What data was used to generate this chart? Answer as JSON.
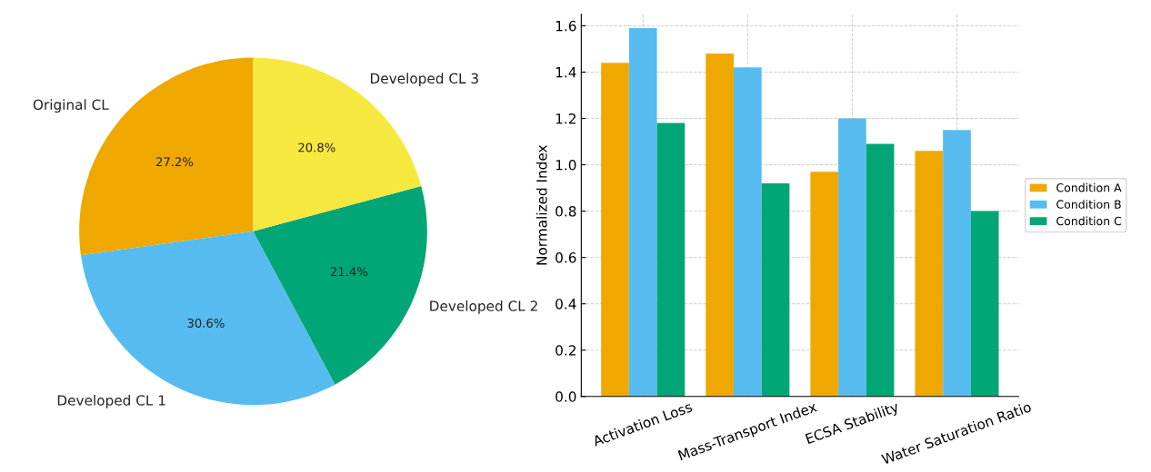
{
  "chart_data": [
    {
      "type": "pie",
      "categories": [
        "Original CL",
        "Developed CL 1",
        "Developed CL 2",
        "Developed CL 3"
      ],
      "values": [
        27.2,
        30.6,
        21.4,
        20.8
      ],
      "colors": [
        "#efa800",
        "#56bcf0",
        "#00a676",
        "#f7e840"
      ],
      "value_labels": [
        "27.2%",
        "30.6%",
        "21.4%",
        "20.8%"
      ]
    },
    {
      "type": "bar",
      "ylabel": "Normalized Index",
      "categories": [
        "Activation Loss",
        "Mass-Transport Index",
        "ECSA Stability",
        "Water Saturation Ratio"
      ],
      "series": [
        {
          "name": "Condition A",
          "color": "#efa800",
          "values": [
            1.44,
            1.48,
            0.97,
            1.06
          ]
        },
        {
          "name": "Condition B",
          "color": "#56bcf0",
          "values": [
            1.59,
            1.42,
            1.2,
            1.15
          ]
        },
        {
          "name": "Condition C",
          "color": "#00a676",
          "values": [
            1.18,
            0.92,
            1.09,
            0.8
          ]
        }
      ],
      "ylim": [
        0,
        1.65
      ],
      "yticks": [
        {
          "value": 0,
          "label": "0.0"
        },
        0.2,
        0.4,
        0.6,
        0.8,
        {
          "value": 1,
          "label": "1.0"
        },
        1.2,
        1.4,
        1.6
      ],
      "grid": true,
      "legend": "right"
    }
  ]
}
